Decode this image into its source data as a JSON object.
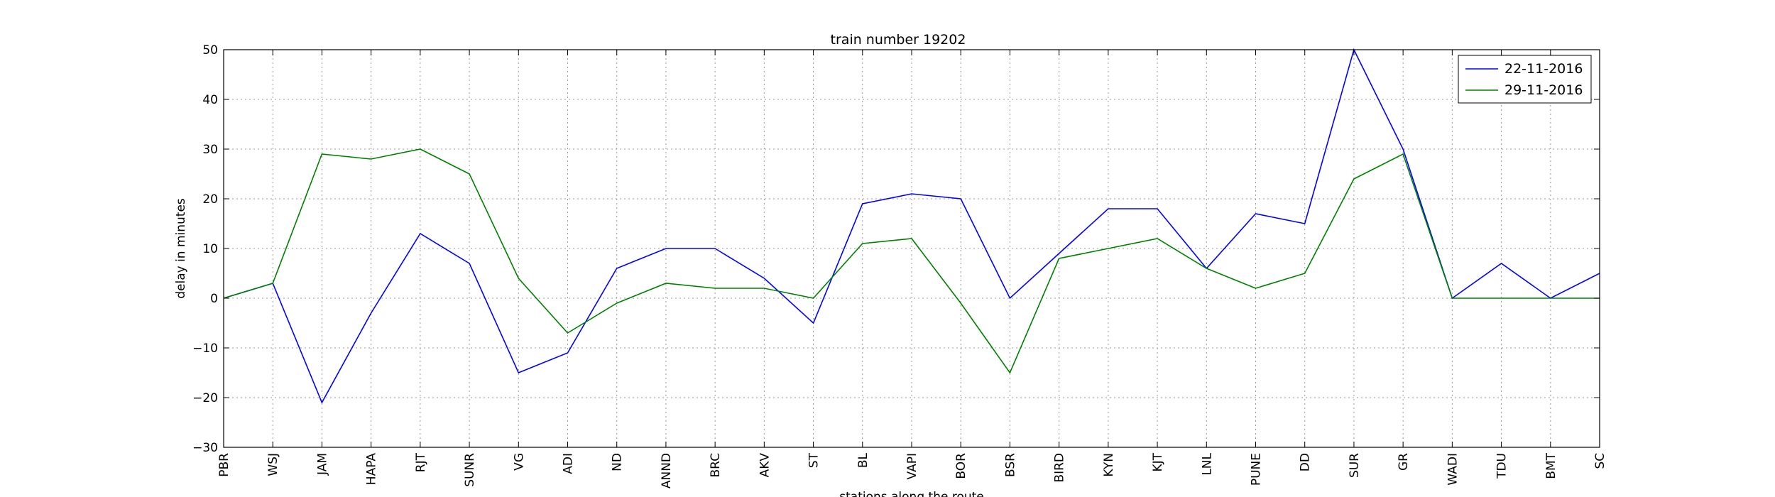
{
  "chart_data": {
    "type": "line",
    "title": "train number 19202",
    "xlabel": "stations along the route",
    "ylabel": "delay in minutes",
    "ylim": [
      -30,
      50
    ],
    "yticks": [
      -30,
      -20,
      -10,
      0,
      10,
      20,
      30,
      40,
      50
    ],
    "grid": true,
    "legend_position": "top-right",
    "categories": [
      "PBR",
      "WSJ",
      "JAM",
      "HAPA",
      "RJT",
      "SUNR",
      "VG",
      "ADI",
      "ND",
      "ANND",
      "BRC",
      "AKV",
      "ST",
      "BL",
      "VAPI",
      "BOR",
      "BSR",
      "BIRD",
      "KYN",
      "KJT",
      "LNL",
      "PUNE",
      "DD",
      "SUR",
      "GR",
      "WADI",
      "TDU",
      "BMT",
      "SC"
    ],
    "series": [
      {
        "name": "22-11-2016",
        "color": "#0000ff",
        "values": [
          0,
          3,
          -21,
          -3,
          13,
          7,
          -15,
          -11,
          6,
          10,
          10,
          4,
          -5,
          19,
          21,
          20,
          0,
          9,
          18,
          18,
          6,
          17,
          15,
          50,
          30,
          0,
          7,
          0,
          5
        ]
      },
      {
        "name": "29-11-2016",
        "color": "#008000",
        "values": [
          0,
          3,
          29,
          28,
          30,
          25,
          4,
          -7,
          -1,
          3,
          2,
          2,
          0,
          11,
          12,
          -1,
          -15,
          8,
          10,
          12,
          6,
          2,
          5,
          24,
          29,
          0,
          0,
          0,
          0
        ]
      }
    ]
  }
}
